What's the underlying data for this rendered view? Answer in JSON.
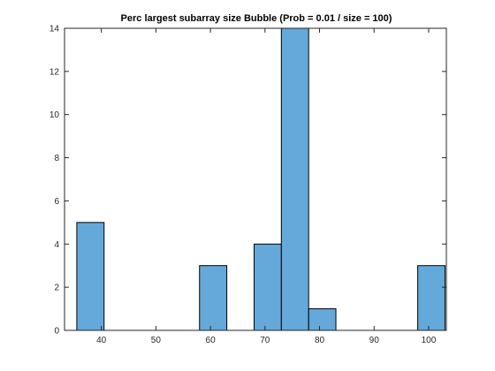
{
  "chart_data": {
    "type": "bar",
    "title": "Perc largest subarray size Bubble (Prob = 0.01 / size = 100)",
    "xlabel": "",
    "ylabel": "",
    "xlim": [
      33.25,
      103.25
    ],
    "ylim": [
      0,
      14
    ],
    "grid": false,
    "bin_width": 5,
    "bins": [
      {
        "x_start": 35.5,
        "x_end": 40.5,
        "value": 5
      },
      {
        "x_start": 58.0,
        "x_end": 63.0,
        "value": 3
      },
      {
        "x_start": 68.0,
        "x_end": 73.0,
        "value": 4
      },
      {
        "x_start": 73.0,
        "x_end": 78.0,
        "value": 14
      },
      {
        "x_start": 78.0,
        "x_end": 83.0,
        "value": 1
      },
      {
        "x_start": 98.0,
        "x_end": 103.0,
        "value": 3
      }
    ],
    "x_ticks": [
      40,
      50,
      60,
      70,
      80,
      90,
      100
    ],
    "y_ticks": [
      0,
      2,
      4,
      6,
      8,
      10,
      12,
      14
    ],
    "bar_color": "#64a9d9",
    "edge_color": "#000000"
  }
}
